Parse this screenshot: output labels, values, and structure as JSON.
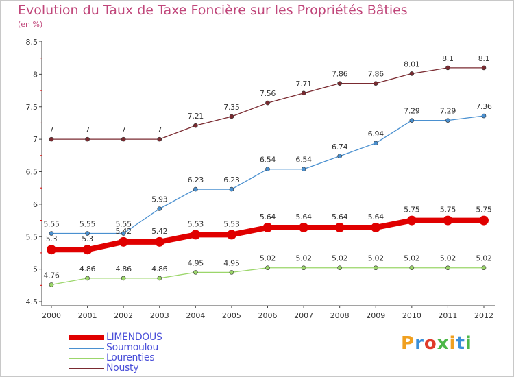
{
  "header": {
    "title": "Evolution du Taux de Taxe Foncière sur les Propriétés Bâties",
    "unit": "(en %)"
  },
  "logo": {
    "text": "Proxiti",
    "colors": [
      "#f0a020",
      "#3a8fd8",
      "#e03a2a",
      "#4db848",
      "#f0a020",
      "#3a8fd8",
      "#4db848"
    ]
  },
  "chart_data": {
    "type": "line",
    "title": "Evolution du Taux de Taxe Foncière sur les Propriétés Bâties",
    "ylabel": "(en %)",
    "xlabel": "",
    "x": [
      "2000",
      "2001",
      "2002",
      "2003",
      "2004",
      "2005",
      "2006",
      "2007",
      "2008",
      "2009",
      "2010",
      "2011",
      "2012"
    ],
    "ylim": [
      4.5,
      8.5
    ],
    "yticks": [
      "4.5",
      "5",
      "5.5",
      "6",
      "6.5",
      "7",
      "7.5",
      "8",
      "8.5"
    ],
    "grid": false,
    "legend_position": "bottom-left",
    "series": [
      {
        "name": "LIMENDOUS",
        "color": "#e00000",
        "highlight": true,
        "values": [
          5.3,
          5.3,
          5.42,
          5.42,
          5.53,
          5.53,
          5.64,
          5.64,
          5.64,
          5.64,
          5.75,
          5.75,
          5.75
        ],
        "labels": [
          "5.3",
          "5.3",
          "5.42",
          "5.42",
          "5.53",
          "5.53",
          "5.64",
          "5.64",
          "5.64",
          "5.64",
          "5.75",
          "5.75",
          "5.75"
        ]
      },
      {
        "name": "Soumoulou",
        "color": "#4a90d0",
        "highlight": false,
        "values": [
          5.55,
          5.55,
          5.55,
          5.93,
          6.23,
          6.23,
          6.54,
          6.54,
          6.74,
          6.94,
          7.29,
          7.29,
          7.36
        ],
        "labels": [
          "5.55",
          "5.55",
          "5.55",
          "5.93",
          "6.23",
          "6.23",
          "6.54",
          "6.54",
          "6.74",
          "6.94",
          "7.29",
          "7.29",
          "7.36"
        ]
      },
      {
        "name": "Lourenties",
        "color": "#9bd66a",
        "highlight": false,
        "values": [
          4.76,
          4.86,
          4.86,
          4.86,
          4.95,
          4.95,
          5.02,
          5.02,
          5.02,
          5.02,
          5.02,
          5.02,
          5.02
        ],
        "labels": [
          "4.76",
          "4.86",
          "4.86",
          "4.86",
          "4.95",
          "4.95",
          "5.02",
          "5.02",
          "5.02",
          "5.02",
          "5.02",
          "5.02",
          "5.02"
        ]
      },
      {
        "name": "Nousty",
        "color": "#7a2a30",
        "highlight": false,
        "values": [
          7,
          7,
          7,
          7,
          7.21,
          7.35,
          7.56,
          7.71,
          7.86,
          7.86,
          8.01,
          8.1,
          8.1
        ],
        "labels": [
          "7",
          "7",
          "7",
          "7",
          "7.21",
          "7.35",
          "7.56",
          "7.71",
          "7.86",
          "7.86",
          "8.01",
          "8.1",
          "8.1"
        ]
      }
    ]
  }
}
